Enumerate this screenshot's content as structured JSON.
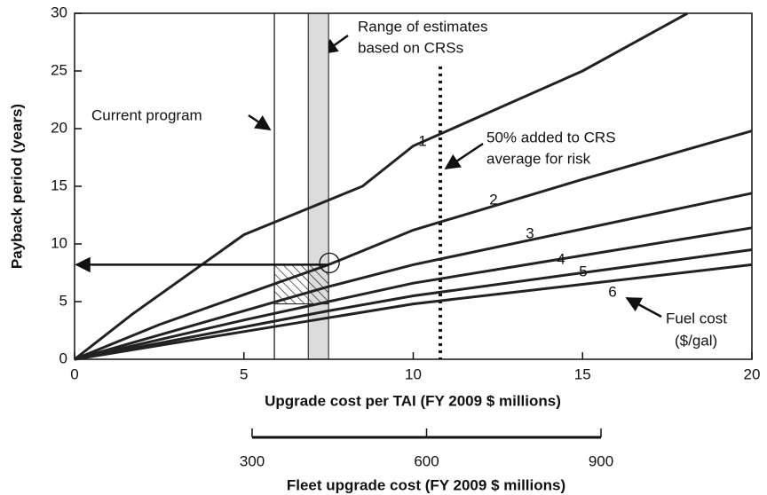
{
  "chart_data": {
    "type": "line",
    "xlabel": "Upgrade cost per TAI (FY 2009 $ millions)",
    "ylabel": "Payback period (years)",
    "xlim": [
      0,
      20
    ],
    "xticks": [
      0,
      5,
      10,
      15,
      20
    ],
    "ylim": [
      0,
      30
    ],
    "yticks": [
      0,
      5,
      10,
      15,
      20,
      25,
      30
    ],
    "series": [
      {
        "name": "1",
        "color": "#222222",
        "x": [
          0,
          1.7,
          5,
          8.5,
          10,
          15,
          18.1
        ],
        "values": [
          0,
          3.9,
          10.8,
          15,
          18.5,
          25,
          30
        ]
      },
      {
        "name": "2",
        "color": "#222222",
        "x": [
          0,
          2.5,
          5,
          7.5,
          10,
          15,
          20
        ],
        "values": [
          0,
          3.0,
          5.6,
          8.2,
          11.2,
          15.6,
          19.8
        ]
      },
      {
        "name": "3",
        "color": "#222222",
        "x": [
          0,
          2.5,
          5,
          7.5,
          10,
          15,
          20
        ],
        "values": [
          0,
          2.1,
          4.2,
          6.3,
          8.2,
          11.3,
          14.4
        ]
      },
      {
        "name": "4",
        "color": "#222222",
        "x": [
          0,
          2.5,
          5,
          7.5,
          10,
          15,
          20
        ],
        "values": [
          0,
          1.7,
          3.4,
          5.0,
          6.6,
          9.0,
          11.4
        ]
      },
      {
        "name": "5",
        "color": "#222222",
        "x": [
          0,
          2.5,
          5,
          7.5,
          10,
          15,
          20
        ],
        "values": [
          0,
          1.4,
          2.8,
          4.2,
          5.5,
          7.5,
          9.5
        ]
      },
      {
        "name": "6",
        "color": "#222222",
        "x": [
          0,
          2.5,
          5,
          7.5,
          10,
          15,
          20
        ],
        "values": [
          0,
          1.2,
          2.4,
          3.6,
          4.8,
          6.5,
          8.2
        ]
      }
    ],
    "current_program": {
      "text": "Current program",
      "x": 5.9
    },
    "crs_range": {
      "text": [
        "Range of estimates",
        "based on CRSs"
      ],
      "x": [
        6.9,
        7.5
      ]
    },
    "risk": {
      "text": [
        "50% added to CRS",
        "average for risk"
      ],
      "x": 10.8
    },
    "payback": {
      "x": 7.5,
      "y": 8.2,
      "ylow": 4.8
    },
    "fuel_cost_label": [
      "Fuel cost",
      "($/gal)"
    ],
    "x2label": "Fleet upgrade cost (FY 2009 $ millions)",
    "x2lim": [
      300,
      900
    ],
    "x2ticks": [
      300,
      600,
      900
    ]
  }
}
